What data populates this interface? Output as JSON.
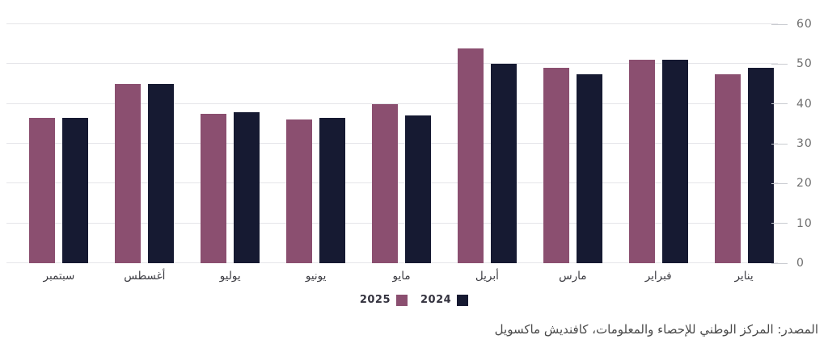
{
  "chart_data": {
    "type": "bar",
    "title": "",
    "rtl": true,
    "categories": [
      "سبتمبر",
      "أغسطس",
      "يوليو",
      "يونيو",
      "مايو",
      "أبريل",
      "مارس",
      "فبراير",
      "يناير"
    ],
    "series": [
      {
        "name": "2025",
        "color": "#8b4f70",
        "values": [
          36.5,
          45,
          37.5,
          36,
          40,
          54,
          49,
          51,
          47.5
        ]
      },
      {
        "name": "2024",
        "color": "#161a32",
        "values": [
          36.5,
          45,
          38,
          36.5,
          37,
          50,
          47.5,
          51,
          49
        ]
      }
    ],
    "ylim": [
      0,
      60
    ],
    "yticks": [
      0,
      10,
      20,
      30,
      40,
      50,
      60
    ],
    "grid": true,
    "legend_position": "bottom-center",
    "y_axis_side": "right"
  },
  "source_note": "المصدر: المركز الوطني للإحصاء والمعلومات، كافنديش ماكسويل",
  "colors": {
    "background": "#ffffff",
    "gridline": "#e5e5e9",
    "tick_mark": "#c9cbd0",
    "y_label": "#6f6f6f",
    "x_label": "#3c3c42",
    "legend_text": "#33323e",
    "source_text": "#4a4a4a",
    "series_2025": "#8b4f70",
    "series_2024": "#161a32"
  }
}
